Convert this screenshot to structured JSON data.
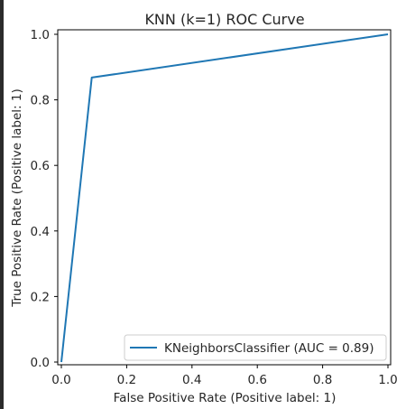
{
  "chart_data": {
    "type": "line",
    "title": "KNN (k=1) ROC Curve",
    "xlabel": "False Positive Rate (Positive label: 1)",
    "ylabel": "True Positive Rate (Positive label: 1)",
    "xlim": [
      0.0,
      1.0
    ],
    "ylim": [
      0.0,
      1.0
    ],
    "x_ticks": [
      "0.0",
      "0.2",
      "0.4",
      "0.6",
      "0.8",
      "1.0"
    ],
    "y_ticks": [
      "0.0",
      "0.2",
      "0.4",
      "0.6",
      "0.8",
      "1.0"
    ],
    "grid": false,
    "legend_position": "lower-right",
    "series": [
      {
        "name": "KNeighborsClassifier (AUC = 0.89)",
        "color": "#1f77b4",
        "x": [
          0.0,
          0.093,
          1.0
        ],
        "y": [
          0.0,
          0.868,
          1.0
        ]
      }
    ]
  }
}
